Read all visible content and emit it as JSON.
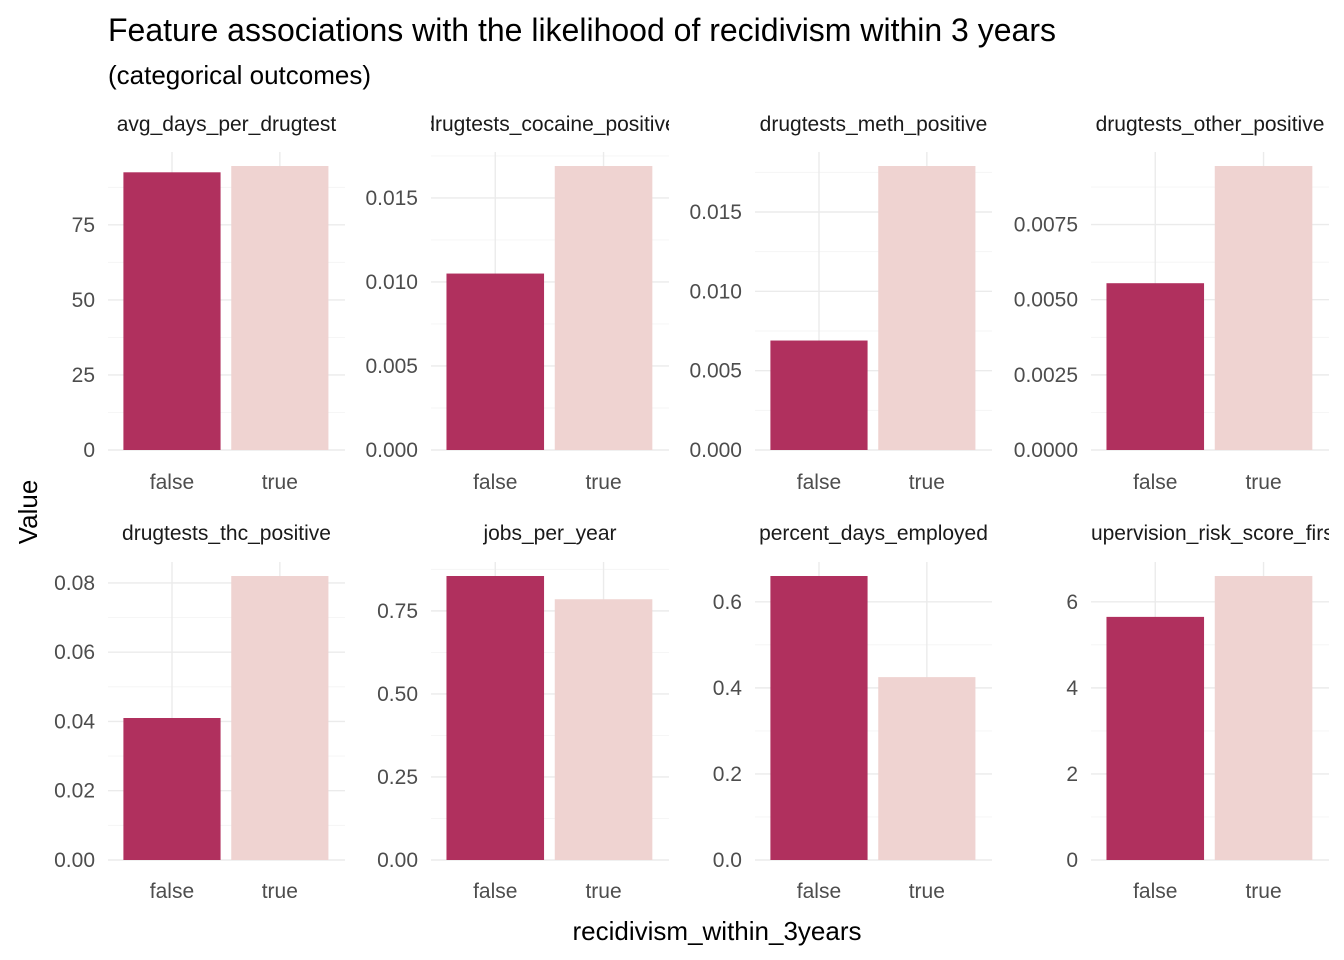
{
  "chart_data": {
    "type": "bar",
    "title": "Feature associations with the likelihood of recidivism within 3 years",
    "subtitle": "(categorical outcomes)",
    "xlabel": "recidivism_within_3years",
    "ylabel": "Value",
    "categories": [
      "false",
      "true"
    ],
    "colors": {
      "false": "#b0305e",
      "true": "#efd3d1"
    },
    "grid": true,
    "facets": [
      {
        "label": "avg_days_per_drugtest",
        "values": [
          92.5,
          94.6
        ],
        "ylim": [
          0,
          94.6
        ],
        "ticks": [
          0,
          25,
          50,
          75
        ],
        "decimals": 0
      },
      {
        "label": "drugtests_cocaine_positive",
        "values": [
          0.0105,
          0.0169
        ],
        "ylim": [
          0,
          0.0169
        ],
        "ticks": [
          0,
          0.005,
          0.01,
          0.015
        ],
        "decimals": 3
      },
      {
        "label": "drugtests_meth_positive",
        "values": [
          0.0069,
          0.0179
        ],
        "ylim": [
          0,
          0.0179
        ],
        "ticks": [
          0,
          0.005,
          0.01,
          0.015
        ],
        "decimals": 3
      },
      {
        "label": "drugtests_other_positive",
        "values": [
          0.00555,
          0.00945
        ],
        "ylim": [
          0,
          0.00945
        ],
        "ticks": [
          0,
          0.0025,
          0.005,
          0.0075
        ],
        "decimals": 4
      },
      {
        "label": "drugtests_thc_positive",
        "values": [
          0.041,
          0.082
        ],
        "ylim": [
          0,
          0.082
        ],
        "ticks": [
          0,
          0.02,
          0.04,
          0.06,
          0.08
        ],
        "decimals": 2
      },
      {
        "label": "jobs_per_year",
        "values": [
          0.855,
          0.785
        ],
        "ylim": [
          0,
          0.855
        ],
        "ticks": [
          0,
          0.25,
          0.5,
          0.75
        ],
        "decimals": 2
      },
      {
        "label": "percent_days_employed",
        "values": [
          0.66,
          0.425
        ],
        "ylim": [
          0,
          0.66
        ],
        "ticks": [
          0,
          0.2,
          0.4,
          0.6
        ],
        "decimals": 1
      },
      {
        "label": "supervision_risk_score_first",
        "values": [
          5.65,
          6.6
        ],
        "ylim": [
          0,
          6.6
        ],
        "ticks": [
          0,
          2,
          4,
          6
        ],
        "decimals": 0
      }
    ]
  }
}
